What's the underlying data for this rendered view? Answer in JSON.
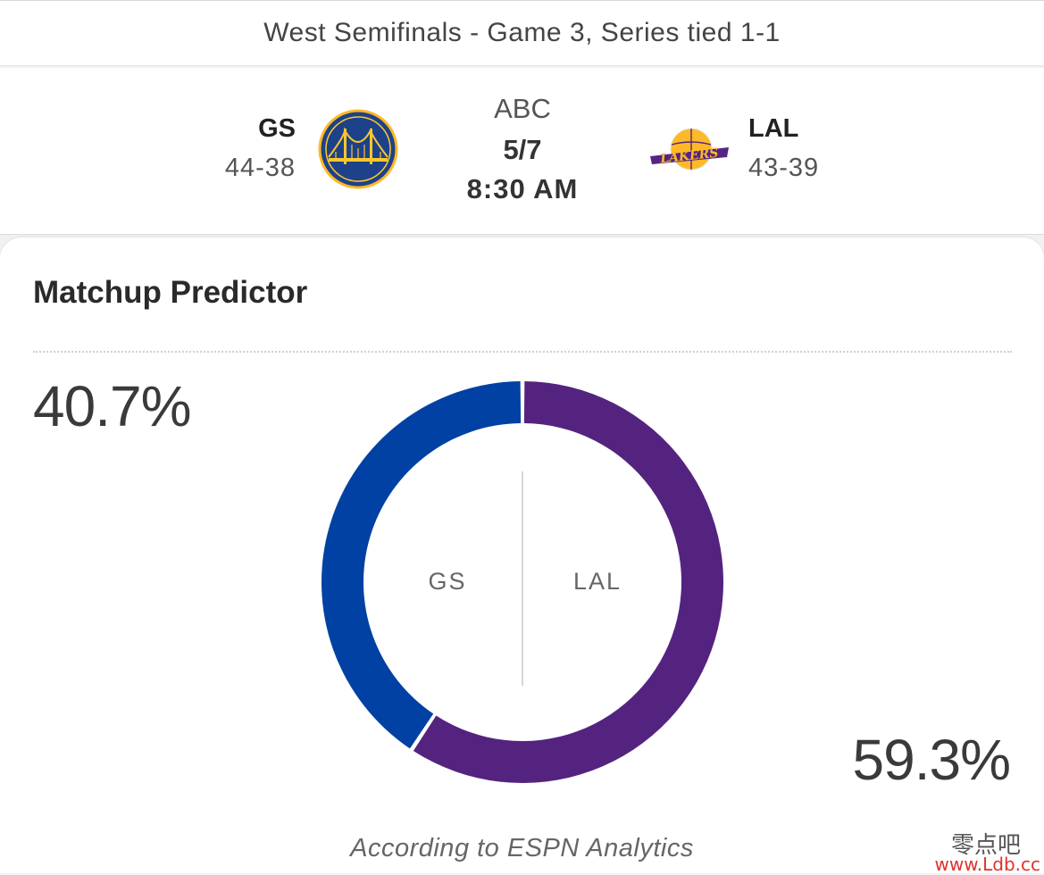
{
  "series": {
    "title": "West Semifinals - Game 3, Series tied 1-1"
  },
  "game": {
    "network": "ABC",
    "date": "5/7",
    "time": "8:30 AM",
    "away": {
      "abbr": "GS",
      "record": "44-38",
      "logo": "warriors-logo",
      "color": "#1d428a",
      "accent": "#ffc72c"
    },
    "home": {
      "abbr": "LAL",
      "record": "43-39",
      "logo": "lakers-logo",
      "color": "#552583",
      "accent": "#fdb927"
    }
  },
  "predictor": {
    "title": "Matchup Predictor",
    "away_pct_label": "40.7%",
    "home_pct_label": "59.3%",
    "away_label": "GS",
    "home_label": "LAL",
    "footnote": "According to ESPN Analytics"
  },
  "chart_data": {
    "type": "pie",
    "categories": [
      "GS",
      "LAL"
    ],
    "values": [
      40.7,
      59.3
    ],
    "colors": [
      "#0041a3",
      "#54237f"
    ],
    "donut": true
  },
  "watermark": {
    "cn": "零点吧",
    "url": "www.Ldb.cc"
  }
}
